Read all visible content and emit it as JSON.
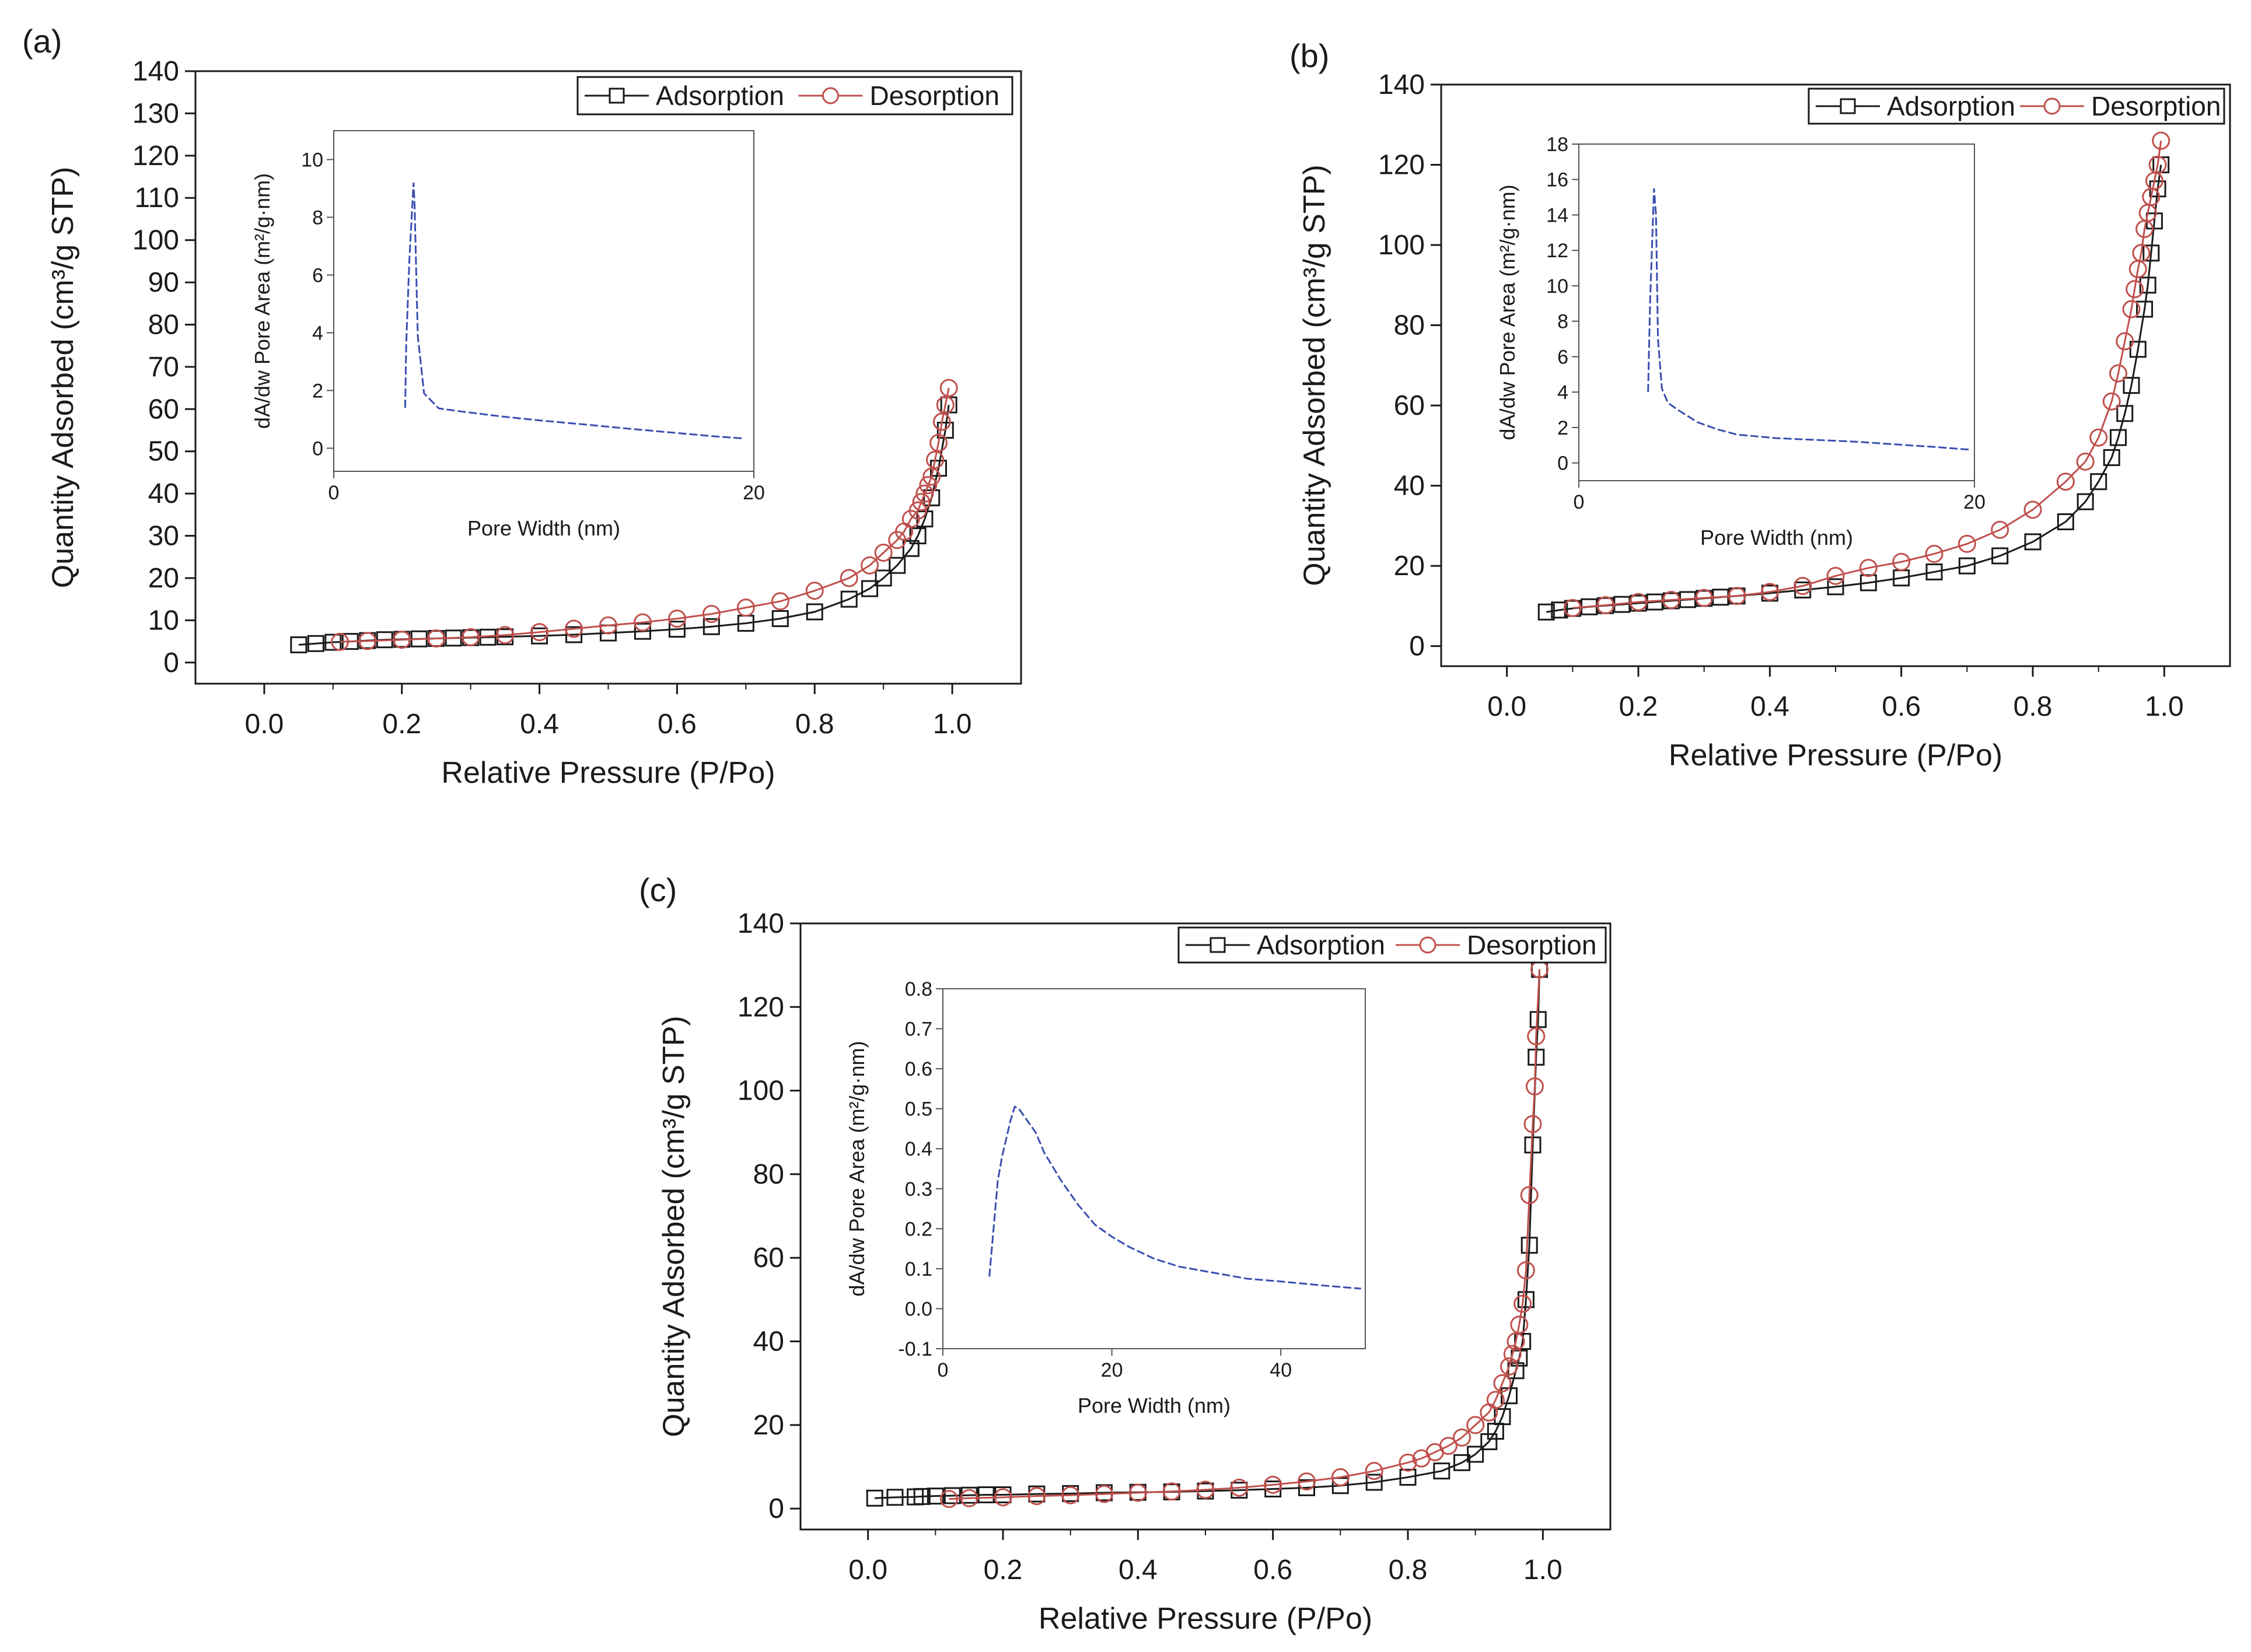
{
  "figure": {
    "legend_adsorption": "Adsorption",
    "legend_desorption": "Desorption",
    "colors": {
      "adsorption": "#1a1a1a",
      "desorption": "#c0504d",
      "inset_line": "#3a4fb0",
      "frame": "#1a1a1a",
      "inset_frame": "#555555"
    }
  },
  "chart_data": [
    {
      "id": "a",
      "panel_label": "(a)",
      "type": "line",
      "xlabel": "Relative Pressure (P/Po)",
      "ylabel": "Quantity Adsorbed (cm³/g STP)",
      "xlim": [
        -0.1,
        1.1
      ],
      "ylim": [
        -5,
        140
      ],
      "xticks": [
        0.0,
        0.2,
        0.4,
        0.6,
        0.8,
        1.0
      ],
      "xtick_labels": [
        "0.0",
        "0.2",
        "0.4",
        "0.6",
        "0.8",
        "1.0"
      ],
      "yticks": [
        0,
        10,
        20,
        30,
        40,
        50,
        60,
        70,
        80,
        90,
        100,
        110,
        120,
        130,
        140
      ],
      "ytick_labels": [
        "0",
        "10",
        "20",
        "30",
        "40",
        "50",
        "60",
        "70",
        "80",
        "90",
        "100",
        "110",
        "120",
        "130",
        "140"
      ],
      "legend": [
        "Adsorption",
        "Desorption"
      ],
      "series": [
        {
          "name": "Adsorption",
          "x": [
            0.05,
            0.075,
            0.1,
            0.125,
            0.15,
            0.175,
            0.2,
            0.225,
            0.25,
            0.275,
            0.3,
            0.325,
            0.35,
            0.4,
            0.45,
            0.5,
            0.55,
            0.6,
            0.65,
            0.7,
            0.75,
            0.8,
            0.85,
            0.88,
            0.9,
            0.92,
            0.94,
            0.95,
            0.96,
            0.97,
            0.98,
            0.99,
            0.995
          ],
          "y": [
            4.2,
            4.5,
            4.8,
            5.0,
            5.2,
            5.4,
            5.5,
            5.6,
            5.7,
            5.8,
            5.9,
            6.0,
            6.1,
            6.3,
            6.6,
            7.0,
            7.4,
            7.9,
            8.5,
            9.3,
            10.4,
            12.0,
            15.0,
            17.5,
            20.0,
            23.0,
            27.0,
            30.0,
            34.0,
            39.0,
            46.0,
            55.0,
            61.0
          ]
        },
        {
          "name": "Desorption",
          "x": [
            0.995,
            0.99,
            0.985,
            0.98,
            0.975,
            0.97,
            0.965,
            0.96,
            0.955,
            0.95,
            0.94,
            0.93,
            0.92,
            0.9,
            0.88,
            0.85,
            0.8,
            0.75,
            0.7,
            0.65,
            0.6,
            0.55,
            0.5,
            0.45,
            0.4,
            0.35,
            0.3,
            0.25,
            0.2,
            0.15,
            0.11
          ],
          "y": [
            65.0,
            61.0,
            57.0,
            52.0,
            48.0,
            44.0,
            42.0,
            40.0,
            38.0,
            36.0,
            34.0,
            31.0,
            29.0,
            26.0,
            23.0,
            20.0,
            17.0,
            14.5,
            13.0,
            11.5,
            10.4,
            9.5,
            8.8,
            8.0,
            7.2,
            6.5,
            6.0,
            5.7,
            5.4,
            5.1,
            4.9
          ]
        }
      ],
      "inset": {
        "type": "line",
        "xlabel": "Pore Width (nm)",
        "ylabel": "dA/dw Pore Area (m²/g·nm)",
        "xlim": [
          0,
          20
        ],
        "ylim": [
          -0.8,
          11
        ],
        "xticks": [
          0,
          20
        ],
        "xtick_labels": [
          "0",
          "20"
        ],
        "yticks": [
          0,
          2,
          4,
          6,
          8,
          10
        ],
        "ytick_labels": [
          "0",
          "2",
          "4",
          "6",
          "8",
          "10"
        ],
        "x": [
          3.4,
          3.45,
          3.6,
          3.8,
          3.85,
          4.0,
          4.3,
          5,
          6,
          8,
          10,
          12,
          14,
          16,
          18,
          19.5
        ],
        "y": [
          1.4,
          3.6,
          6.5,
          9.2,
          8.4,
          3.9,
          1.9,
          1.38,
          1.28,
          1.1,
          0.95,
          0.82,
          0.68,
          0.55,
          0.42,
          0.34
        ]
      }
    },
    {
      "id": "b",
      "panel_label": "(b)",
      "type": "line",
      "xlabel": "Relative Pressure (P/Po)",
      "ylabel": "Quantity Adsorbed (cm³/g STP)",
      "xlim": [
        -0.1,
        1.1
      ],
      "ylim": [
        -5,
        140
      ],
      "xticks": [
        0.0,
        0.2,
        0.4,
        0.6,
        0.8,
        1.0
      ],
      "xtick_labels": [
        "0.0",
        "0.2",
        "0.4",
        "0.6",
        "0.8",
        "1.0"
      ],
      "yticks": [
        0,
        20,
        40,
        60,
        80,
        100,
        120,
        140
      ],
      "ytick_labels": [
        "0",
        "20",
        "40",
        "60",
        "80",
        "100",
        "120",
        "140"
      ],
      "legend": [
        "Adsorption",
        "Desorption"
      ],
      "series": [
        {
          "name": "Adsorption",
          "x": [
            0.06,
            0.08,
            0.1,
            0.125,
            0.15,
            0.175,
            0.2,
            0.225,
            0.25,
            0.275,
            0.3,
            0.325,
            0.35,
            0.4,
            0.45,
            0.5,
            0.55,
            0.6,
            0.65,
            0.7,
            0.75,
            0.8,
            0.85,
            0.88,
            0.9,
            0.92,
            0.93,
            0.94,
            0.95,
            0.96,
            0.97,
            0.975,
            0.98,
            0.985,
            0.99,
            0.995
          ],
          "y": [
            8.5,
            9.0,
            9.4,
            9.8,
            10.1,
            10.4,
            10.7,
            11.0,
            11.3,
            11.6,
            11.9,
            12.2,
            12.5,
            13.2,
            14.0,
            14.8,
            15.8,
            17.0,
            18.5,
            20.0,
            22.5,
            26.0,
            31.0,
            36.0,
            41.0,
            47.0,
            52.0,
            58.0,
            65.0,
            74.0,
            84.0,
            90.0,
            98.0,
            106.0,
            114.0,
            120.0
          ]
        },
        {
          "name": "Desorption",
          "x": [
            0.995,
            0.99,
            0.985,
            0.98,
            0.975,
            0.97,
            0.965,
            0.96,
            0.955,
            0.95,
            0.94,
            0.93,
            0.92,
            0.9,
            0.88,
            0.85,
            0.8,
            0.75,
            0.7,
            0.65,
            0.6,
            0.55,
            0.5,
            0.45,
            0.4,
            0.35,
            0.3,
            0.25,
            0.2,
            0.15,
            0.1
          ],
          "y": [
            126.0,
            120.0,
            116.0,
            112.0,
            108.0,
            104.0,
            98.0,
            94.0,
            89.0,
            84.0,
            76.0,
            68.0,
            61.0,
            52.0,
            46.0,
            41.0,
            34.0,
            29.0,
            25.5,
            23.0,
            21.0,
            19.5,
            17.5,
            15.0,
            13.5,
            12.5,
            12.0,
            11.5,
            11.0,
            10.2,
            9.5
          ]
        }
      ],
      "inset": {
        "type": "line",
        "xlabel": "Pore Width (nm)",
        "ylabel": "dA/dw Pore Area (m²/g·nm)",
        "xlim": [
          0,
          20
        ],
        "ylim": [
          -1,
          18
        ],
        "xticks": [
          0,
          20
        ],
        "xtick_labels": [
          "0",
          "20"
        ],
        "yticks": [
          0,
          2,
          4,
          6,
          8,
          10,
          12,
          14,
          16,
          18
        ],
        "ytick_labels": [
          "0",
          "2",
          "4",
          "6",
          "8",
          "10",
          "12",
          "14",
          "16",
          "18"
        ],
        "x": [
          3.5,
          3.6,
          3.8,
          3.9,
          4.0,
          4.2,
          4.5,
          5,
          6,
          7,
          8,
          10,
          12,
          14,
          16,
          18,
          19.8
        ],
        "y": [
          4.0,
          9.0,
          15.5,
          14.0,
          7.0,
          4.2,
          3.4,
          3.0,
          2.3,
          1.9,
          1.6,
          1.4,
          1.3,
          1.2,
          1.05,
          0.9,
          0.75
        ]
      }
    },
    {
      "id": "c",
      "panel_label": "(c)",
      "type": "line",
      "xlabel": "Relative Pressure (P/Po)",
      "ylabel": "Quantity Adsorbed (cm³/g STP)",
      "xlim": [
        -0.1,
        1.1
      ],
      "ylim": [
        -5,
        140
      ],
      "xticks": [
        0.0,
        0.2,
        0.4,
        0.6,
        0.8,
        1.0
      ],
      "xtick_labels": [
        "0.0",
        "0.2",
        "0.4",
        "0.6",
        "0.8",
        "1.0"
      ],
      "yticks": [
        0,
        20,
        40,
        60,
        80,
        100,
        120,
        140
      ],
      "ytick_labels": [
        "0",
        "20",
        "40",
        "60",
        "80",
        "100",
        "120",
        "140"
      ],
      "legend": [
        "Adsorption",
        "Desorption"
      ],
      "series": [
        {
          "name": "Adsorption",
          "x": [
            0.01,
            0.04,
            0.07,
            0.08,
            0.1,
            0.125,
            0.15,
            0.175,
            0.2,
            0.25,
            0.3,
            0.35,
            0.4,
            0.45,
            0.5,
            0.55,
            0.6,
            0.65,
            0.7,
            0.75,
            0.8,
            0.85,
            0.88,
            0.9,
            0.92,
            0.93,
            0.94,
            0.95,
            0.96,
            0.965,
            0.97,
            0.975,
            0.98,
            0.985,
            0.99,
            0.993,
            0.995
          ],
          "y": [
            2.5,
            2.7,
            2.8,
            2.9,
            3.0,
            3.1,
            3.2,
            3.3,
            3.3,
            3.5,
            3.6,
            3.8,
            3.9,
            4.0,
            4.2,
            4.4,
            4.7,
            5.0,
            5.5,
            6.3,
            7.5,
            9.0,
            11.0,
            13.0,
            16.0,
            18.5,
            22.0,
            27.0,
            33.0,
            36.0,
            40.0,
            50.0,
            63.0,
            87.0,
            108.0,
            117.0,
            129.0
          ]
        },
        {
          "name": "Desorption",
          "x": [
            0.995,
            0.99,
            0.988,
            0.985,
            0.98,
            0.975,
            0.97,
            0.965,
            0.96,
            0.955,
            0.95,
            0.94,
            0.93,
            0.92,
            0.9,
            0.88,
            0.86,
            0.84,
            0.82,
            0.8,
            0.75,
            0.7,
            0.65,
            0.6,
            0.55,
            0.5,
            0.45,
            0.4,
            0.35,
            0.3,
            0.25,
            0.2,
            0.15,
            0.12
          ],
          "y": [
            129.0,
            113.0,
            101.0,
            92.0,
            75.0,
            57.0,
            49.0,
            44.0,
            40.0,
            37.0,
            34.0,
            30.0,
            26.0,
            23.0,
            20.0,
            17.0,
            15.0,
            13.5,
            12.0,
            11.0,
            9.0,
            7.5,
            6.5,
            5.7,
            5.0,
            4.5,
            4.1,
            3.8,
            3.5,
            3.2,
            3.0,
            2.7,
            2.5,
            2.3
          ]
        }
      ],
      "inset": {
        "type": "line",
        "xlabel": "Pore Width (nm)",
        "ylabel": "dA/dw Pore Area (m²/g·nm)",
        "xlim": [
          0,
          50
        ],
        "ylim": [
          -0.1,
          0.8
        ],
        "xticks": [
          0,
          20,
          40
        ],
        "xtick_labels": [
          "0",
          "20",
          "40"
        ],
        "yticks": [
          -0.1,
          0.0,
          0.1,
          0.2,
          0.3,
          0.4,
          0.5,
          0.6,
          0.7,
          0.8
        ],
        "ytick_labels": [
          "-0.1",
          "0.0",
          "0.1",
          "0.2",
          "0.3",
          "0.4",
          "0.5",
          "0.6",
          "0.7",
          "0.8"
        ],
        "x": [
          5.5,
          6,
          6.5,
          7,
          8,
          8.5,
          9,
          10,
          11,
          12,
          14,
          16,
          18,
          20,
          22,
          25,
          28,
          32,
          36,
          40,
          45,
          49.5
        ],
        "y": [
          0.08,
          0.2,
          0.32,
          0.38,
          0.47,
          0.505,
          0.5,
          0.47,
          0.44,
          0.39,
          0.32,
          0.26,
          0.21,
          0.18,
          0.155,
          0.125,
          0.105,
          0.09,
          0.075,
          0.068,
          0.058,
          0.05
        ]
      }
    }
  ]
}
